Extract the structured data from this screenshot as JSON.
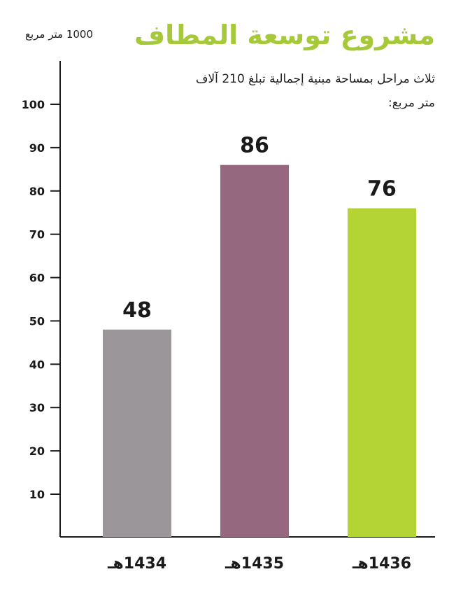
{
  "colors": {
    "title": "#a6c93a",
    "bar_1434": "#9a9699",
    "bar_1435": "#96687f",
    "bar_1436": "#b4d334",
    "axis": "#1a1a1a"
  },
  "chart_data": {
    "type": "bar",
    "title": "مشروع توسعة المطاف",
    "subtitle": "ثلاث مراحل بمساحة مبنية إجمالية تبلغ 210 آلاف متر مربع:",
    "ylabel": "1000 متر مربع",
    "xlabel": "",
    "categories": [
      "1434هـ",
      "1435هـ",
      "1436هـ"
    ],
    "values": [
      48,
      86,
      76
    ],
    "data_labels": [
      "48",
      "86",
      "76"
    ],
    "ylim": [
      0,
      105
    ],
    "yticks": [
      10,
      20,
      30,
      40,
      50,
      60,
      70,
      80,
      90,
      100
    ],
    "grid": false,
    "legend": "none"
  }
}
